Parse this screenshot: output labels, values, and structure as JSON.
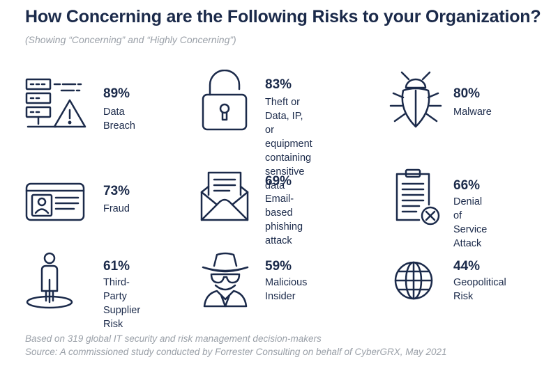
{
  "header": {
    "title": "How Concerning are the Following Risks to your Organization?",
    "subtitle": "(Showing “Concerning” and “Highly Concerning”)"
  },
  "colors": {
    "ink": "#1b2a4a",
    "muted": "#9aa0a8"
  },
  "chart_data": {
    "type": "table",
    "title": "How Concerning are the Following Risks to your Organization?",
    "unit": "%",
    "items": [
      {
        "label": "Data Breach",
        "value": 89,
        "value_text": "89%",
        "icon": "server-warning-icon"
      },
      {
        "label": "Theft or Data, IP, or\nequipment containing\nsensitive data",
        "value": 83,
        "value_text": "83%",
        "icon": "padlock-icon"
      },
      {
        "label": "Malware",
        "value": 80,
        "value_text": "80%",
        "icon": "bug-icon"
      },
      {
        "label": "Fraud",
        "value": 73,
        "value_text": "73%",
        "icon": "id-card-icon"
      },
      {
        "label": "Email-based\nphishing attack",
        "value": 69,
        "value_text": "69%",
        "icon": "envelope-icon"
      },
      {
        "label": "Denial of Service\nAttack",
        "value": 66,
        "value_text": "66%",
        "icon": "clipboard-denied-icon"
      },
      {
        "label": "Third-Party\nSupplier Risk",
        "value": 61,
        "value_text": "61%",
        "icon": "person-pin-icon"
      },
      {
        "label": "Malicious\nInsider",
        "value": 59,
        "value_text": "59%",
        "icon": "spy-icon"
      },
      {
        "label": "Geopolitical\nRisk",
        "value": 44,
        "value_text": "44%",
        "icon": "globe-icon"
      }
    ]
  },
  "footer": {
    "line1": "Based on 319 global IT security and risk management decision-makers",
    "line2": "Source: A commissioned study conducted by Forrester Consulting on behalf of CyberGRX, May 2021"
  }
}
